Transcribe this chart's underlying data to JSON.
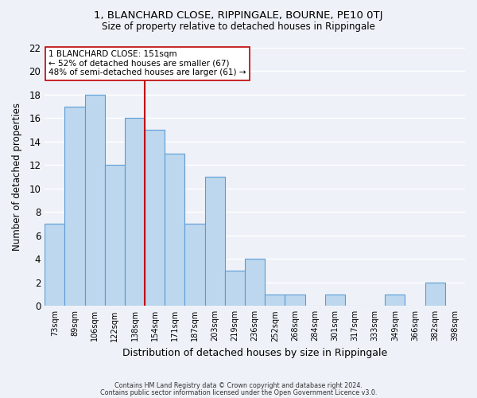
{
  "title": "1, BLANCHARD CLOSE, RIPPINGALE, BOURNE, PE10 0TJ",
  "subtitle": "Size of property relative to detached houses in Rippingale",
  "xlabel": "Distribution of detached houses by size in Rippingale",
  "ylabel": "Number of detached properties",
  "categories": [
    "73sqm",
    "89sqm",
    "106sqm",
    "122sqm",
    "138sqm",
    "154sqm",
    "171sqm",
    "187sqm",
    "203sqm",
    "219sqm",
    "236sqm",
    "252sqm",
    "268sqm",
    "284sqm",
    "301sqm",
    "317sqm",
    "333sqm",
    "349sqm",
    "366sqm",
    "382sqm",
    "398sqm"
  ],
  "values": [
    7,
    17,
    18,
    12,
    16,
    15,
    13,
    7,
    11,
    3,
    4,
    1,
    1,
    0,
    1,
    0,
    0,
    1,
    0,
    2,
    0
  ],
  "bar_color": "#bdd7ee",
  "bar_edge_color": "#5b9bd5",
  "vline_color": "#c00000",
  "vline_x": 5.0,
  "annotation_title": "1 BLANCHARD CLOSE: 151sqm",
  "annotation_line1": "← 52% of detached houses are smaller (67)",
  "annotation_line2": "48% of semi-detached houses are larger (61) →",
  "annotation_box_color": "#ffffff",
  "annotation_box_edge": "#c00000",
  "ylim": [
    0,
    22
  ],
  "yticks": [
    0,
    2,
    4,
    6,
    8,
    10,
    12,
    14,
    16,
    18,
    20,
    22
  ],
  "footer1": "Contains HM Land Registry data © Crown copyright and database right 2024.",
  "footer2": "Contains public sector information licensed under the Open Government Licence v3.0.",
  "bg_color": "#eef2f8",
  "title_fontsize": 9.5,
  "subtitle_fontsize": 8.5
}
